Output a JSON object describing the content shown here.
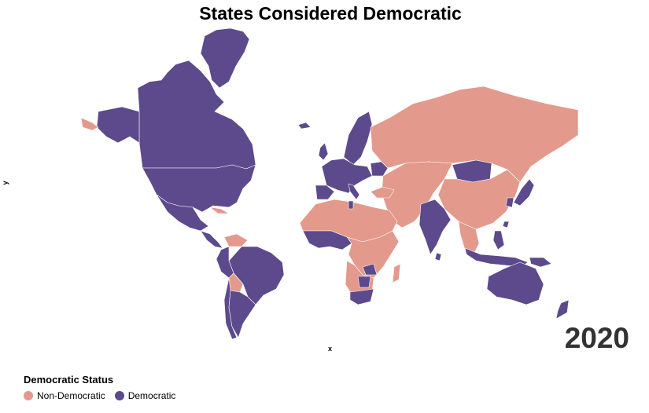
{
  "title": "States Considered Democratic",
  "xlabel": "x",
  "ylabel": "y",
  "year": "2020",
  "legend": {
    "title": "Democratic Status",
    "items": [
      {
        "label": "Non-Democratic",
        "color": "#e3998b"
      },
      {
        "label": "Democratic",
        "color": "#5c4a8c"
      }
    ]
  },
  "map": {
    "projection": "mercator",
    "colors": {
      "democratic": "#5c4a8c",
      "non_democratic": "#e3998b",
      "border": "#ffffff"
    },
    "regions": [
      {
        "name": "Canada",
        "status": "democratic"
      },
      {
        "name": "United States",
        "status": "democratic"
      },
      {
        "name": "Alaska",
        "status": "democratic"
      },
      {
        "name": "Greenland",
        "status": "democratic"
      },
      {
        "name": "Chukotka",
        "status": "non_democratic"
      },
      {
        "name": "Mexico",
        "status": "democratic"
      },
      {
        "name": "Central America",
        "status": "democratic"
      },
      {
        "name": "Cuba",
        "status": "non_democratic"
      },
      {
        "name": "Venezuela",
        "status": "non_democratic"
      },
      {
        "name": "Brazil",
        "status": "democratic"
      },
      {
        "name": "Peru",
        "status": "democratic"
      },
      {
        "name": "Bolivia",
        "status": "non_democratic"
      },
      {
        "name": "Argentina",
        "status": "democratic"
      },
      {
        "name": "Chile",
        "status": "democratic"
      },
      {
        "name": "Iceland",
        "status": "democratic"
      },
      {
        "name": "Scandinavia",
        "status": "democratic"
      },
      {
        "name": "Western Europe",
        "status": "democratic"
      },
      {
        "name": "Great Britain",
        "status": "democratic"
      },
      {
        "name": "Iberia",
        "status": "democratic"
      },
      {
        "name": "Italy",
        "status": "democratic"
      },
      {
        "name": "Ukraine",
        "status": "democratic"
      },
      {
        "name": "Russia",
        "status": "non_democratic"
      },
      {
        "name": "Middle East & Central Asia",
        "status": "non_democratic"
      },
      {
        "name": "Turkey",
        "status": "non_democratic"
      },
      {
        "name": "China",
        "status": "non_democratic"
      },
      {
        "name": "Mongolia",
        "status": "democratic"
      },
      {
        "name": "India",
        "status": "democratic"
      },
      {
        "name": "Sri Lanka",
        "status": "democratic"
      },
      {
        "name": "Southeast Asia",
        "status": "non_democratic"
      },
      {
        "name": "Japan",
        "status": "democratic"
      },
      {
        "name": "South Korea",
        "status": "democratic"
      },
      {
        "name": "Taiwan",
        "status": "democratic"
      },
      {
        "name": "Philippines",
        "status": "democratic"
      },
      {
        "name": "Indonesia",
        "status": "democratic"
      },
      {
        "name": "Papua New Guinea",
        "status": "democratic"
      },
      {
        "name": "North Africa",
        "status": "non_democratic"
      },
      {
        "name": "Tunisia",
        "status": "democratic"
      },
      {
        "name": "West African democracies",
        "status": "democratic"
      },
      {
        "name": "Central & East Africa",
        "status": "non_democratic"
      },
      {
        "name": "Southern Africa",
        "status": "non_democratic"
      },
      {
        "name": "Namibia & Botswana",
        "status": "democratic"
      },
      {
        "name": "Zambia & Malawi",
        "status": "democratic"
      },
      {
        "name": "South Africa",
        "status": "democratic"
      },
      {
        "name": "Madagascar",
        "status": "non_democratic"
      },
      {
        "name": "Australia",
        "status": "democratic"
      },
      {
        "name": "New Zealand",
        "status": "democratic"
      }
    ]
  }
}
